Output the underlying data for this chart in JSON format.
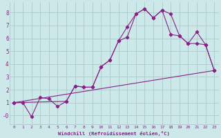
{
  "background_color": "#cce8e8",
  "grid_color": "#aacaca",
  "line_color": "#882288",
  "xlabel": "Windchill (Refroidissement éolien,°C)",
  "xlabel_color": "#882288",
  "ylabel_color": "#882288",
  "tick_color": "#882288",
  "xlim": [
    -0.5,
    23.5
  ],
  "ylim": [
    -0.7,
    8.8
  ],
  "yticks": [
    0,
    1,
    2,
    3,
    4,
    5,
    6,
    7,
    8
  ],
  "ytick_labels": [
    "-0",
    "1",
    "2",
    "3",
    "4",
    "5",
    "6",
    "7",
    "8"
  ],
  "xticks": [
    0,
    1,
    2,
    3,
    4,
    5,
    6,
    7,
    8,
    9,
    10,
    11,
    12,
    13,
    14,
    15,
    16,
    17,
    18,
    19,
    20,
    21,
    22,
    23
  ],
  "line1_x": [
    0,
    1,
    2,
    3,
    4,
    5,
    6,
    7,
    8,
    9,
    10,
    11,
    12,
    13,
    14,
    15,
    16,
    17,
    18,
    19,
    20,
    21,
    22,
    23
  ],
  "line1_y": [
    1.0,
    1.0,
    -0.1,
    1.4,
    1.3,
    0.7,
    1.1,
    2.3,
    2.2,
    2.2,
    3.8,
    4.3,
    5.8,
    6.9,
    7.9,
    8.3,
    7.6,
    8.2,
    7.9,
    6.2,
    5.6,
    6.5,
    5.5,
    3.5
  ],
  "line2_x": [
    0,
    6,
    7,
    8,
    9,
    10,
    11,
    12,
    13,
    14,
    15,
    16,
    17,
    18,
    19,
    20,
    21,
    22,
    23
  ],
  "line2_y": [
    1.0,
    1.1,
    2.3,
    2.2,
    2.2,
    3.8,
    4.3,
    5.8,
    6.1,
    7.9,
    8.3,
    7.6,
    8.2,
    6.3,
    6.2,
    5.6,
    5.6,
    5.5,
    3.5
  ],
  "line3_x": [
    0,
    23
  ],
  "line3_y": [
    1.0,
    3.5
  ]
}
